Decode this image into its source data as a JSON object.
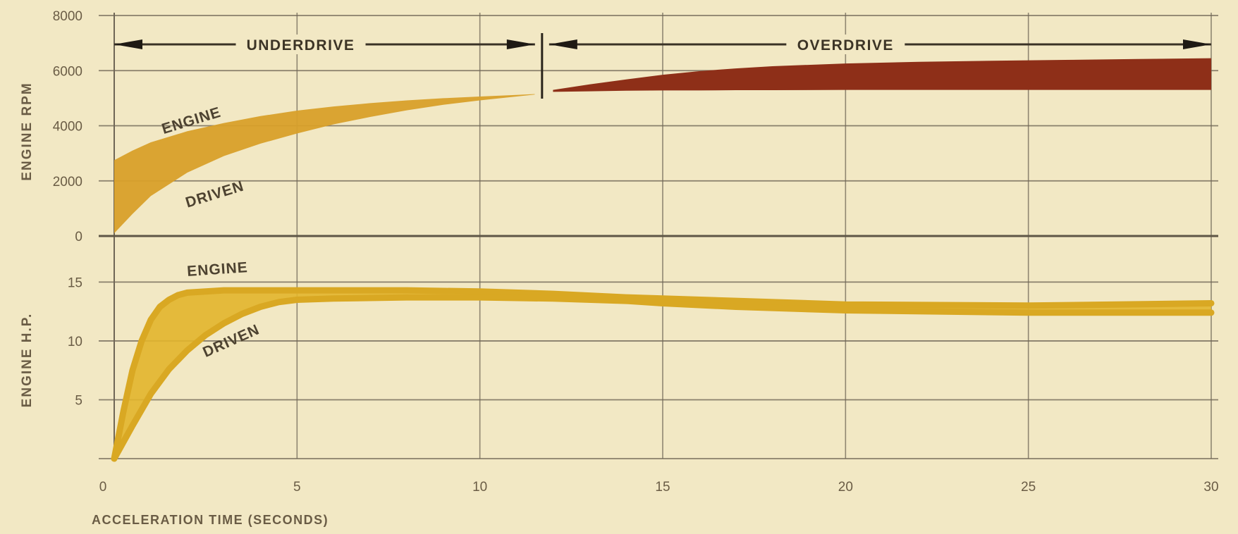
{
  "chart_data": [
    {
      "type": "area",
      "panel": "top",
      "ylabel": "ENGINE RPM",
      "xlabel": "",
      "xlim": [
        0,
        30
      ],
      "ylim": [
        0,
        8000
      ],
      "x_ticks": [
        "0",
        "5",
        "10",
        "15",
        "20",
        "25",
        "30"
      ],
      "y_ticks": [
        "0",
        "2000",
        "4000",
        "6000",
        "8000"
      ],
      "grid": true,
      "regions": [
        {
          "label": "UNDERDRIVE",
          "x_start": 0,
          "x_end": 11.7
        },
        {
          "label": "OVERDRIVE",
          "x_start": 11.7,
          "x_end": 30
        }
      ],
      "shift_point_x": 11.7,
      "band_labels": {
        "upper": "ENGINE",
        "lower": "DRIVEN"
      },
      "series": [
        {
          "name": "ENGINE",
          "x": [
            0,
            0.5,
            1,
            2,
            3,
            4,
            5,
            6,
            7,
            8,
            9,
            10,
            11,
            11.5
          ],
          "values": [
            2750,
            3100,
            3400,
            3800,
            4100,
            4350,
            4550,
            4700,
            4820,
            4920,
            5000,
            5060,
            5120,
            5150
          ]
        },
        {
          "name": "DRIVEN",
          "x": [
            0,
            0.5,
            1,
            2,
            3,
            4,
            5,
            6,
            7,
            8,
            9,
            10,
            11,
            11.5
          ],
          "values": [
            100,
            800,
            1450,
            2300,
            2900,
            3350,
            3720,
            4050,
            4320,
            4560,
            4760,
            4920,
            5060,
            5130
          ]
        },
        {
          "name": "ENGINE",
          "x": [
            12,
            13,
            14,
            15,
            16,
            17,
            18,
            20,
            22,
            24,
            26,
            28,
            30
          ],
          "values": [
            5300,
            5500,
            5680,
            5850,
            5980,
            6080,
            6160,
            6260,
            6320,
            6360,
            6390,
            6420,
            6450
          ]
        },
        {
          "name": "DRIVEN",
          "x": [
            12,
            13,
            14,
            15,
            16,
            17,
            18,
            20,
            22,
            24,
            26,
            28,
            30
          ],
          "values": [
            5230,
            5250,
            5270,
            5280,
            5280,
            5290,
            5290,
            5300,
            5300,
            5300,
            5300,
            5300,
            5300
          ]
        }
      ]
    },
    {
      "type": "area",
      "panel": "bottom",
      "ylabel": "ENGINE H.P.",
      "xlabel": "ACCELERATION TIME (SECONDS)",
      "xlim": [
        0,
        30
      ],
      "ylim": [
        0,
        17
      ],
      "x_ticks": [
        "0",
        "5",
        "10",
        "15",
        "20",
        "25",
        "30"
      ],
      "y_ticks": [
        "0",
        "5",
        "10",
        "15"
      ],
      "grid": true,
      "band_labels": {
        "upper": "ENGINE",
        "lower": "DRIVEN"
      },
      "series": [
        {
          "name": "ENGINE",
          "x": [
            0,
            0.25,
            0.5,
            0.75,
            1,
            1.25,
            1.5,
            1.75,
            2,
            2.5,
            3,
            4,
            5,
            6,
            8,
            10,
            12,
            14,
            15,
            17,
            20,
            25,
            30
          ],
          "values": [
            0,
            4,
            7.5,
            10,
            11.8,
            12.9,
            13.5,
            13.9,
            14.1,
            14.2,
            14.3,
            14.3,
            14.3,
            14.3,
            14.3,
            14.2,
            14.0,
            13.7,
            13.6,
            13.4,
            13.1,
            13.0,
            13.2
          ]
        },
        {
          "name": "DRIVEN",
          "x": [
            0,
            0.5,
            1,
            1.5,
            2,
            2.5,
            3,
            3.5,
            4,
            4.5,
            5,
            6,
            8,
            10,
            12,
            14,
            15,
            17,
            20,
            25,
            30
          ],
          "values": [
            0,
            2.8,
            5.5,
            7.6,
            9.2,
            10.5,
            11.5,
            12.3,
            12.9,
            13.3,
            13.5,
            13.6,
            13.7,
            13.7,
            13.6,
            13.4,
            13.2,
            12.9,
            12.6,
            12.4,
            12.4
          ]
        }
      ]
    }
  ],
  "colors": {
    "background": "#f2e8c4",
    "grid": "#6f6656",
    "underdrive_band": "#d8a02a",
    "overdrive_band": "#8e2f18",
    "hp_band": "#e2b52c",
    "text": "#5a4d39"
  }
}
